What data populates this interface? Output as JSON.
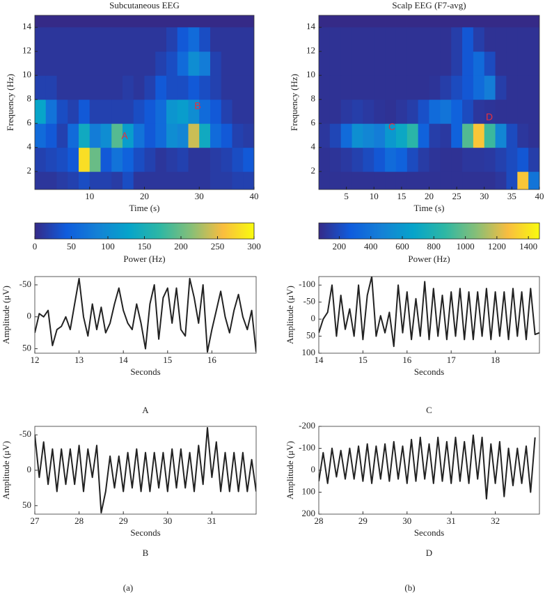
{
  "figure": {
    "labels": [
      "(a)",
      "(b)"
    ]
  },
  "chart_data": [
    {
      "type": "heatmap",
      "title": "Subcutaneous EEG",
      "xlabel": "Time (s)",
      "ylabel": "Frequency (Hz)",
      "x": [
        1,
        3,
        5,
        7,
        9,
        11,
        13,
        15,
        17,
        19,
        21,
        23,
        25,
        27,
        29,
        31,
        33,
        35,
        37,
        39
      ],
      "y": [
        1,
        3,
        5,
        7,
        9,
        11,
        13
      ],
      "z": [
        [
          10,
          10,
          15,
          20,
          30,
          20,
          20,
          15,
          30,
          10,
          10,
          10,
          10,
          10,
          10,
          10,
          15,
          15,
          20,
          20
        ],
        [
          20,
          25,
          30,
          40,
          280,
          200,
          40,
          70,
          50,
          30,
          20,
          10,
          15,
          20,
          10,
          10,
          15,
          20,
          30,
          40
        ],
        [
          60,
          40,
          20,
          60,
          140,
          80,
          100,
          190,
          120,
          70,
          40,
          60,
          100,
          90,
          240,
          140,
          60,
          40,
          20,
          15
        ],
        [
          130,
          70,
          30,
          20,
          40,
          20,
          20,
          20,
          20,
          30,
          40,
          60,
          110,
          120,
          100,
          60,
          40,
          20,
          10,
          10
        ],
        [
          20,
          20,
          10,
          10,
          10,
          10,
          10,
          10,
          15,
          10,
          20,
          40,
          30,
          30,
          40,
          30,
          20,
          10,
          10,
          10
        ],
        [
          10,
          10,
          10,
          10,
          10,
          10,
          10,
          10,
          10,
          10,
          10,
          20,
          30,
          60,
          100,
          80,
          20,
          10,
          10,
          10
        ],
        [
          10,
          10,
          10,
          10,
          10,
          10,
          10,
          10,
          10,
          10,
          10,
          10,
          20,
          40,
          60,
          30,
          10,
          10,
          10,
          10
        ]
      ],
      "xlim": [
        0,
        40
      ],
      "ylim": [
        0.5,
        15
      ],
      "xticks": [
        10,
        20,
        30,
        40
      ],
      "yticks": [
        2,
        4,
        6,
        8,
        10,
        12,
        14
      ],
      "colormap": [
        "#352a87",
        "#0f5cdd",
        "#1481d6",
        "#06a4ca",
        "#2eb7a4",
        "#87bf77",
        "#f9bd3f",
        "#f9fb0e"
      ],
      "colorbar": {
        "label": "Power (Hz)",
        "clim": [
          0,
          300
        ],
        "ticks": [
          0,
          50,
          100,
          150,
          200,
          250,
          300
        ]
      },
      "annotations": [
        "A",
        "B"
      ]
    },
    {
      "type": "heatmap",
      "title": "Scalp EEG (F7-avg)",
      "xlabel": "Time (s)",
      "ylabel": "Frequency (Hz)",
      "x": [
        1,
        3,
        5,
        7,
        9,
        11,
        13,
        15,
        17,
        19,
        21,
        23,
        25,
        27,
        29,
        31,
        33,
        35,
        37,
        39
      ],
      "y": [
        1,
        3,
        5,
        7,
        9,
        11,
        13
      ],
      "z": [
        [
          100,
          100,
          100,
          100,
          100,
          100,
          100,
          100,
          100,
          100,
          100,
          100,
          100,
          100,
          100,
          100,
          120,
          200,
          1300,
          400
        ],
        [
          100,
          110,
          130,
          160,
          200,
          250,
          350,
          300,
          200,
          140,
          110,
          100,
          100,
          120,
          120,
          130,
          160,
          200,
          250,
          150
        ],
        [
          120,
          180,
          350,
          550,
          500,
          450,
          600,
          700,
          850,
          300,
          150,
          130,
          300,
          950,
          1300,
          900,
          500,
          200,
          120,
          100
        ],
        [
          100,
          100,
          130,
          150,
          130,
          110,
          100,
          120,
          150,
          220,
          350,
          400,
          300,
          200,
          120,
          110,
          100,
          100,
          100,
          100
        ],
        [
          100,
          100,
          100,
          100,
          100,
          100,
          100,
          100,
          100,
          100,
          110,
          150,
          200,
          250,
          350,
          450,
          150,
          100,
          100,
          100
        ],
        [
          100,
          100,
          100,
          100,
          100,
          100,
          100,
          100,
          100,
          100,
          100,
          100,
          150,
          250,
          350,
          200,
          100,
          100,
          100,
          100
        ],
        [
          100,
          100,
          100,
          100,
          100,
          100,
          100,
          100,
          100,
          100,
          100,
          100,
          150,
          250,
          150,
          100,
          100,
          100,
          100,
          100
        ]
      ],
      "xlim": [
        0,
        40
      ],
      "ylim": [
        0.5,
        15
      ],
      "xticks": [
        5,
        10,
        15,
        20,
        25,
        30,
        35,
        40
      ],
      "yticks": [
        2,
        4,
        6,
        8,
        10,
        12,
        14
      ],
      "colormap": [
        "#352a87",
        "#0f5cdd",
        "#1481d6",
        "#06a4ca",
        "#2eb7a4",
        "#87bf77",
        "#f9bd3f",
        "#f9fb0e"
      ],
      "colorbar": {
        "label": "Power (Hz)",
        "clim": [
          70,
          1470
        ],
        "ticks": [
          200,
          400,
          600,
          800,
          1000,
          1200,
          1400
        ]
      },
      "annotations": [
        "C",
        "D"
      ]
    },
    {
      "type": "line",
      "caption": "A",
      "xlabel": "Seconds",
      "ylabel": "Amplitude (μV)",
      "x": [
        12.0,
        12.1,
        12.2,
        12.3,
        12.4,
        12.5,
        12.6,
        12.7,
        12.8,
        12.9,
        13.0,
        13.1,
        13.2,
        13.3,
        13.4,
        13.5,
        13.6,
        13.7,
        13.8,
        13.9,
        14.0,
        14.1,
        14.2,
        14.3,
        14.4,
        14.5,
        14.6,
        14.7,
        14.8,
        14.9,
        15.0,
        15.1,
        15.2,
        15.3,
        15.4,
        15.5,
        15.6,
        15.7,
        15.8,
        15.9,
        16.0,
        16.1,
        16.2,
        16.3,
        16.4,
        16.5,
        16.6,
        16.7,
        16.8,
        16.9,
        17.0
      ],
      "series": [
        {
          "color": "#222222",
          "values": [
            25,
            -5,
            0,
            -10,
            45,
            20,
            15,
            0,
            20,
            -20,
            -60,
            0,
            30,
            -20,
            20,
            -15,
            25,
            10,
            -20,
            -45,
            -10,
            10,
            20,
            -20,
            10,
            50,
            -20,
            -50,
            35,
            -30,
            -45,
            10,
            -45,
            20,
            30,
            -60,
            -30,
            10,
            -50,
            55,
            20,
            -10,
            -40,
            0,
            25,
            -10,
            -35,
            0,
            20,
            -10,
            55
          ]
        }
      ],
      "xlim": [
        12,
        17
      ],
      "ylim": [
        -63,
        57
      ],
      "y_inverted": true,
      "xticks": [
        12,
        13,
        14,
        15,
        16
      ],
      "yticks": [
        -50,
        0,
        50
      ]
    },
    {
      "type": "line",
      "caption": "C",
      "xlabel": "Seconds",
      "ylabel": "Amplitude (μV)",
      "x": [
        14.0,
        14.1,
        14.2,
        14.3,
        14.4,
        14.5,
        14.6,
        14.7,
        14.8,
        14.9,
        15.0,
        15.1,
        15.2,
        15.3,
        15.4,
        15.5,
        15.6,
        15.7,
        15.8,
        15.9,
        16.0,
        16.1,
        16.2,
        16.3,
        16.4,
        16.5,
        16.6,
        16.7,
        16.8,
        16.9,
        17.0,
        17.1,
        17.2,
        17.3,
        17.4,
        17.5,
        17.6,
        17.7,
        17.8,
        17.9,
        18.0,
        18.1,
        18.2,
        18.3,
        18.4,
        18.5,
        18.6,
        18.7,
        18.8,
        18.9,
        19.0
      ],
      "series": [
        {
          "color": "#222222",
          "values": [
            40,
            0,
            -20,
            -100,
            50,
            -70,
            30,
            -30,
            50,
            -100,
            60,
            -70,
            -125,
            50,
            -10,
            40,
            -20,
            80,
            -100,
            40,
            -80,
            60,
            -60,
            50,
            -110,
            60,
            -90,
            50,
            -70,
            60,
            -80,
            50,
            -90,
            60,
            -80,
            60,
            -80,
            50,
            -90,
            60,
            -80,
            50,
            -80,
            60,
            -90,
            50,
            -80,
            60,
            -90,
            45,
            40
          ]
        }
      ],
      "xlim": [
        14,
        19
      ],
      "ylim": [
        -125,
        100
      ],
      "y_inverted": true,
      "xticks": [
        14,
        15,
        16,
        17,
        18
      ],
      "yticks": [
        -100,
        -50,
        0,
        50,
        100
      ]
    },
    {
      "type": "line",
      "caption": "B",
      "xlabel": "Seconds",
      "ylabel": "Amplitude (μV)",
      "x": [
        27.0,
        27.1,
        27.2,
        27.3,
        27.4,
        27.5,
        27.6,
        27.7,
        27.8,
        27.9,
        28.0,
        28.1,
        28.2,
        28.3,
        28.4,
        28.5,
        28.6,
        28.7,
        28.8,
        28.9,
        29.0,
        29.1,
        29.2,
        29.3,
        29.4,
        29.5,
        29.6,
        29.7,
        29.8,
        29.9,
        30.0,
        30.1,
        30.2,
        30.3,
        30.4,
        30.5,
        30.6,
        30.7,
        30.8,
        30.9,
        31.0,
        31.1,
        31.2,
        31.3,
        31.4,
        31.5,
        31.6,
        31.7,
        31.8,
        31.9,
        32.0
      ],
      "series": [
        {
          "color": "#222222",
          "values": [
            -50,
            10,
            -40,
            20,
            -30,
            30,
            -30,
            20,
            -30,
            20,
            -35,
            30,
            -30,
            10,
            -35,
            60,
            30,
            -20,
            25,
            -20,
            30,
            -25,
            25,
            -30,
            30,
            -25,
            30,
            -25,
            25,
            -25,
            30,
            -30,
            25,
            -30,
            25,
            -25,
            30,
            -35,
            20,
            -60,
            10,
            -40,
            30,
            -25,
            30,
            -25,
            30,
            -25,
            30,
            -15,
            30
          ]
        }
      ],
      "xlim": [
        27,
        32
      ],
      "ylim": [
        -62,
        62
      ],
      "y_inverted": true,
      "xticks": [
        27,
        28,
        29,
        30,
        31
      ],
      "yticks": [
        -50,
        0,
        50
      ]
    },
    {
      "type": "line",
      "caption": "D",
      "xlabel": "Seconds",
      "ylabel": "Amplitude (μV)",
      "x": [
        28.0,
        28.1,
        28.2,
        28.3,
        28.4,
        28.5,
        28.6,
        28.7,
        28.8,
        28.9,
        29.0,
        29.1,
        29.2,
        29.3,
        29.4,
        29.5,
        29.6,
        29.7,
        29.8,
        29.9,
        30.0,
        30.1,
        30.2,
        30.3,
        30.4,
        30.5,
        30.6,
        30.7,
        30.8,
        30.9,
        31.0,
        31.1,
        31.2,
        31.3,
        31.4,
        31.5,
        31.6,
        31.7,
        31.8,
        31.9,
        32.0,
        32.1,
        32.2,
        32.3,
        32.4,
        32.5,
        32.6,
        32.7,
        32.8,
        32.9
      ],
      "series": [
        {
          "color": "#222222",
          "values": [
            50,
            -80,
            60,
            -100,
            30,
            -90,
            40,
            -100,
            40,
            -110,
            50,
            -120,
            60,
            -110,
            40,
            -120,
            50,
            -130,
            40,
            -110,
            60,
            -140,
            50,
            -150,
            40,
            -120,
            60,
            -150,
            50,
            -130,
            60,
            -150,
            50,
            -130,
            60,
            -160,
            40,
            -150,
            130,
            -120,
            60,
            -130,
            120,
            -100,
            70,
            -100,
            60,
            -110,
            100,
            -150
          ]
        }
      ],
      "xlim": [
        28,
        33
      ],
      "ylim": [
        -200,
        200
      ],
      "y_inverted": true,
      "xticks": [
        28,
        29,
        30,
        31,
        32
      ],
      "yticks": [
        -200,
        -100,
        0,
        100,
        200
      ]
    }
  ]
}
